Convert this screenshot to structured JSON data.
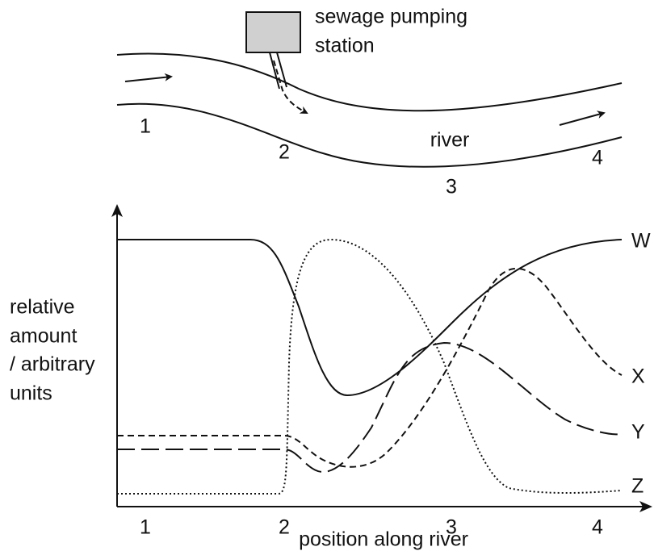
{
  "river_diagram": {
    "station_label": [
      "sewage pumping",
      "station"
    ],
    "river_label": "river",
    "river_positions": [
      "1",
      "2",
      "3",
      "4"
    ]
  },
  "graph": {
    "y_axis_label": [
      "relative",
      "amount",
      "/ arbitrary",
      "units"
    ],
    "x_axis_label": "position along river",
    "x_ticks": [
      "1",
      "2",
      "3",
      "4"
    ],
    "curves": [
      "W",
      "X",
      "Y",
      "Z"
    ]
  }
}
